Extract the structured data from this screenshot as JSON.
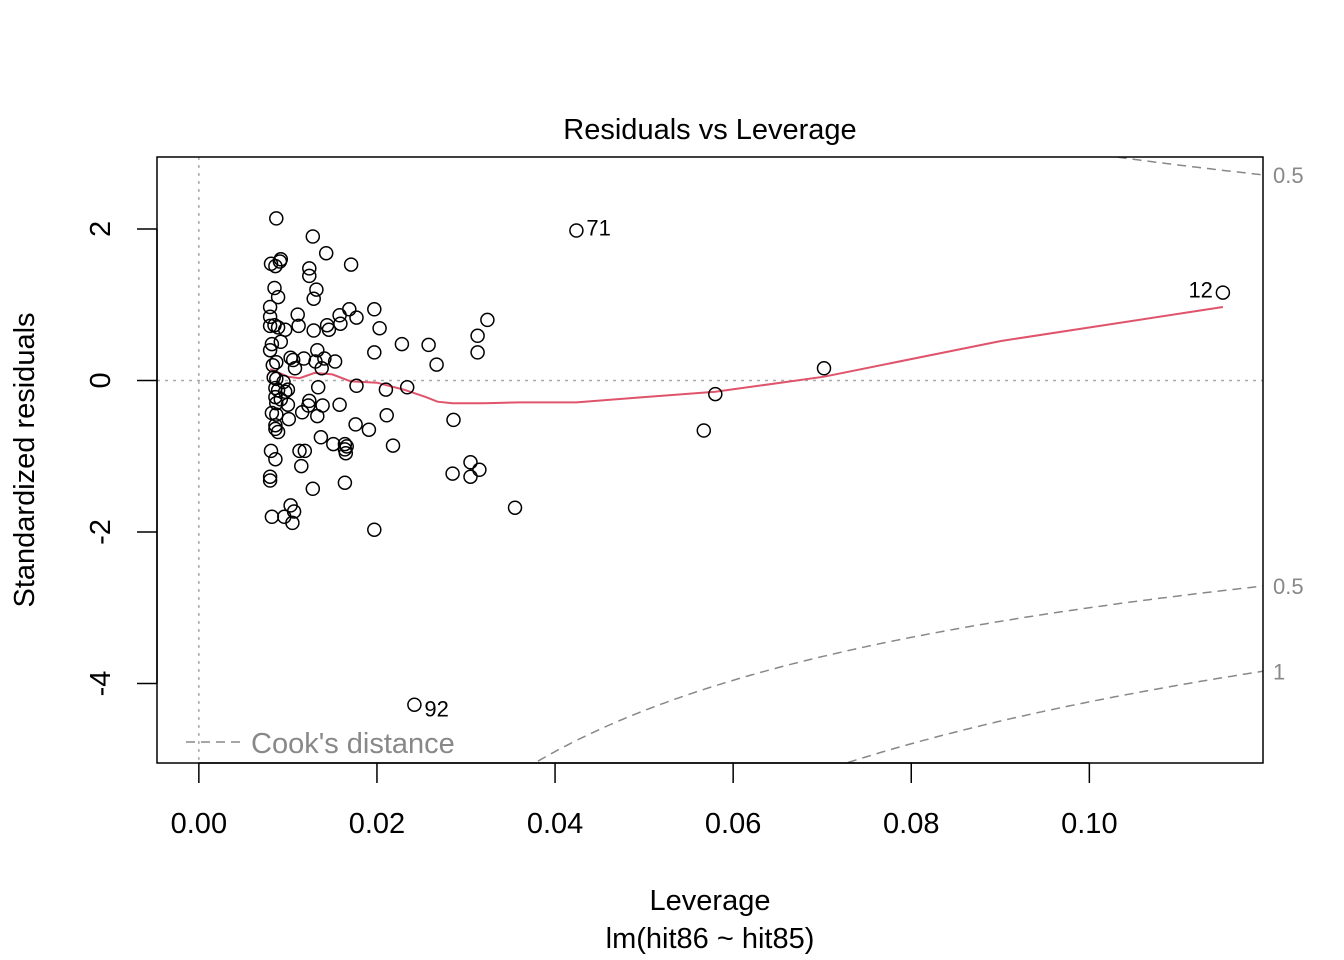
{
  "chart_data": {
    "type": "scatter",
    "title": "Residuals vs Leverage",
    "xlabel": "Leverage",
    "subtitle": "lm(hit86 ~ hit85)",
    "ylabel": "Standardized residuals",
    "xlim": [
      -0.0047,
      0.1195
    ],
    "ylim": [
      -5.05,
      2.95
    ],
    "x_ticks": [
      0.0,
      0.02,
      0.04,
      0.06,
      0.08,
      0.1
    ],
    "x_tick_labels": [
      "0.00",
      "0.02",
      "0.04",
      "0.06",
      "0.08",
      "0.10"
    ],
    "y_ticks": [
      -4,
      -2,
      0,
      2
    ],
    "y_tick_labels": [
      "-4",
      "-2",
      "0",
      "2"
    ],
    "grid": false,
    "points": [
      [
        0.0087,
        2.14
      ],
      [
        0.0128,
        1.9
      ],
      [
        0.0143,
        1.68
      ],
      [
        0.0092,
        1.6
      ],
      [
        0.0091,
        1.57
      ],
      [
        0.0081,
        1.54
      ],
      [
        0.0086,
        1.51
      ],
      [
        0.0171,
        1.53
      ],
      [
        0.0124,
        1.48
      ],
      [
        0.0124,
        1.38
      ],
      [
        0.0085,
        1.22
      ],
      [
        0.0132,
        1.2
      ],
      [
        0.0089,
        1.1
      ],
      [
        0.0129,
        1.08
      ],
      [
        0.008,
        0.97
      ],
      [
        0.0169,
        0.94
      ],
      [
        0.0197,
        0.94
      ],
      [
        0.008,
        0.84
      ],
      [
        0.0111,
        0.87
      ],
      [
        0.0158,
        0.86
      ],
      [
        0.0177,
        0.83
      ],
      [
        0.008,
        0.72
      ],
      [
        0.0085,
        0.73
      ],
      [
        0.0089,
        0.7
      ],
      [
        0.0112,
        0.72
      ],
      [
        0.0144,
        0.73
      ],
      [
        0.0159,
        0.75
      ],
      [
        0.0097,
        0.67
      ],
      [
        0.0129,
        0.66
      ],
      [
        0.0146,
        0.67
      ],
      [
        0.0203,
        0.69
      ],
      [
        0.0082,
        0.48
      ],
      [
        0.0092,
        0.51
      ],
      [
        0.0133,
        0.4
      ],
      [
        0.0228,
        0.48
      ],
      [
        0.0258,
        0.47
      ],
      [
        0.0313,
        0.59
      ],
      [
        0.0324,
        0.8
      ],
      [
        0.008,
        0.4
      ],
      [
        0.0103,
        0.3
      ],
      [
        0.0106,
        0.27
      ],
      [
        0.0118,
        0.29
      ],
      [
        0.0141,
        0.29
      ],
      [
        0.0153,
        0.25
      ],
      [
        0.0131,
        0.25
      ],
      [
        0.0087,
        0.24
      ],
      [
        0.0108,
        0.16
      ],
      [
        0.0138,
        0.16
      ],
      [
        0.0197,
        0.37
      ],
      [
        0.0313,
        0.37
      ],
      [
        0.0267,
        0.21
      ],
      [
        0.0083,
        0.2
      ],
      [
        0.0084,
        0.04
      ],
      [
        0.0087,
        0.02
      ],
      [
        0.0095,
        -0.02
      ],
      [
        0.0086,
        -0.1
      ],
      [
        0.0089,
        -0.13
      ],
      [
        0.0097,
        -0.15
      ],
      [
        0.01,
        -0.12
      ],
      [
        0.0134,
        -0.09
      ],
      [
        0.0177,
        -0.07
      ],
      [
        0.021,
        -0.12
      ],
      [
        0.0234,
        -0.09
      ],
      [
        0.0086,
        -0.22
      ],
      [
        0.0092,
        -0.25
      ],
      [
        0.0087,
        -0.3
      ],
      [
        0.01,
        -0.32
      ],
      [
        0.0124,
        -0.27
      ],
      [
        0.0123,
        -0.33
      ],
      [
        0.0139,
        -0.33
      ],
      [
        0.0158,
        -0.32
      ],
      [
        0.0082,
        -0.43
      ],
      [
        0.0087,
        -0.45
      ],
      [
        0.0101,
        -0.51
      ],
      [
        0.0116,
        -0.42
      ],
      [
        0.0133,
        -0.47
      ],
      [
        0.0176,
        -0.58
      ],
      [
        0.0191,
        -0.65
      ],
      [
        0.0211,
        -0.46
      ],
      [
        0.0286,
        -0.52
      ],
      [
        0.0086,
        -0.59
      ],
      [
        0.0086,
        -0.64
      ],
      [
        0.0089,
        -0.68
      ],
      [
        0.0137,
        -0.75
      ],
      [
        0.0151,
        -0.84
      ],
      [
        0.0164,
        -0.84
      ],
      [
        0.0166,
        -0.87
      ],
      [
        0.0164,
        -0.91
      ],
      [
        0.0165,
        -0.96
      ],
      [
        0.0218,
        -0.86
      ],
      [
        0.0081,
        -0.93
      ],
      [
        0.0113,
        -0.93
      ],
      [
        0.0119,
        -0.93
      ],
      [
        0.0086,
        -1.04
      ],
      [
        0.0115,
        -1.13
      ],
      [
        0.0285,
        -1.23
      ],
      [
        0.0305,
        -1.08
      ],
      [
        0.0305,
        -1.27
      ],
      [
        0.0315,
        -1.18
      ],
      [
        0.008,
        -1.27
      ],
      [
        0.008,
        -1.32
      ],
      [
        0.0128,
        -1.43
      ],
      [
        0.0164,
        -1.35
      ],
      [
        0.0103,
        -1.65
      ],
      [
        0.0107,
        -1.73
      ],
      [
        0.0082,
        -1.8
      ],
      [
        0.0096,
        -1.8
      ],
      [
        0.0105,
        -1.88
      ],
      [
        0.0197,
        -1.97
      ],
      [
        0.0355,
        -1.68
      ],
      [
        0.0567,
        -0.66
      ],
      [
        0.058,
        -0.18
      ],
      [
        0.0702,
        0.16
      ],
      [
        0.0424,
        1.98
      ],
      [
        0.115,
        1.16
      ],
      [
        0.0242,
        -4.28
      ]
    ],
    "labeled_points": [
      {
        "label": "71",
        "x": 0.0424,
        "y": 1.98,
        "side": "right"
      },
      {
        "label": "12",
        "x": 0.115,
        "y": 1.16,
        "side": "left"
      },
      {
        "label": "92",
        "x": 0.0242,
        "y": -4.28,
        "side": "right"
      }
    ],
    "smoother": {
      "color": "#DF536B",
      "x": [
        0.008,
        0.01,
        0.0113,
        0.013,
        0.015,
        0.017,
        0.02,
        0.023,
        0.0255,
        0.0268,
        0.0285,
        0.032,
        0.036,
        0.0424,
        0.05,
        0.058,
        0.0702,
        0.09,
        0.115
      ],
      "y": [
        0.15,
        0.05,
        0.03,
        0.1,
        0.08,
        -0.01,
        -0.03,
        -0.12,
        -0.22,
        -0.28,
        -0.3,
        -0.3,
        -0.29,
        -0.29,
        -0.22,
        -0.15,
        0.05,
        0.52,
        0.97
      ]
    },
    "cooks_distance": {
      "legend": "Cook's distance",
      "contours": [
        {
          "level": 0.5,
          "label": "0.5",
          "sign": 1
        },
        {
          "level": 0.5,
          "label": "0.5",
          "sign": -1
        },
        {
          "level": 1,
          "label": "1",
          "sign": -1
        }
      ]
    }
  }
}
